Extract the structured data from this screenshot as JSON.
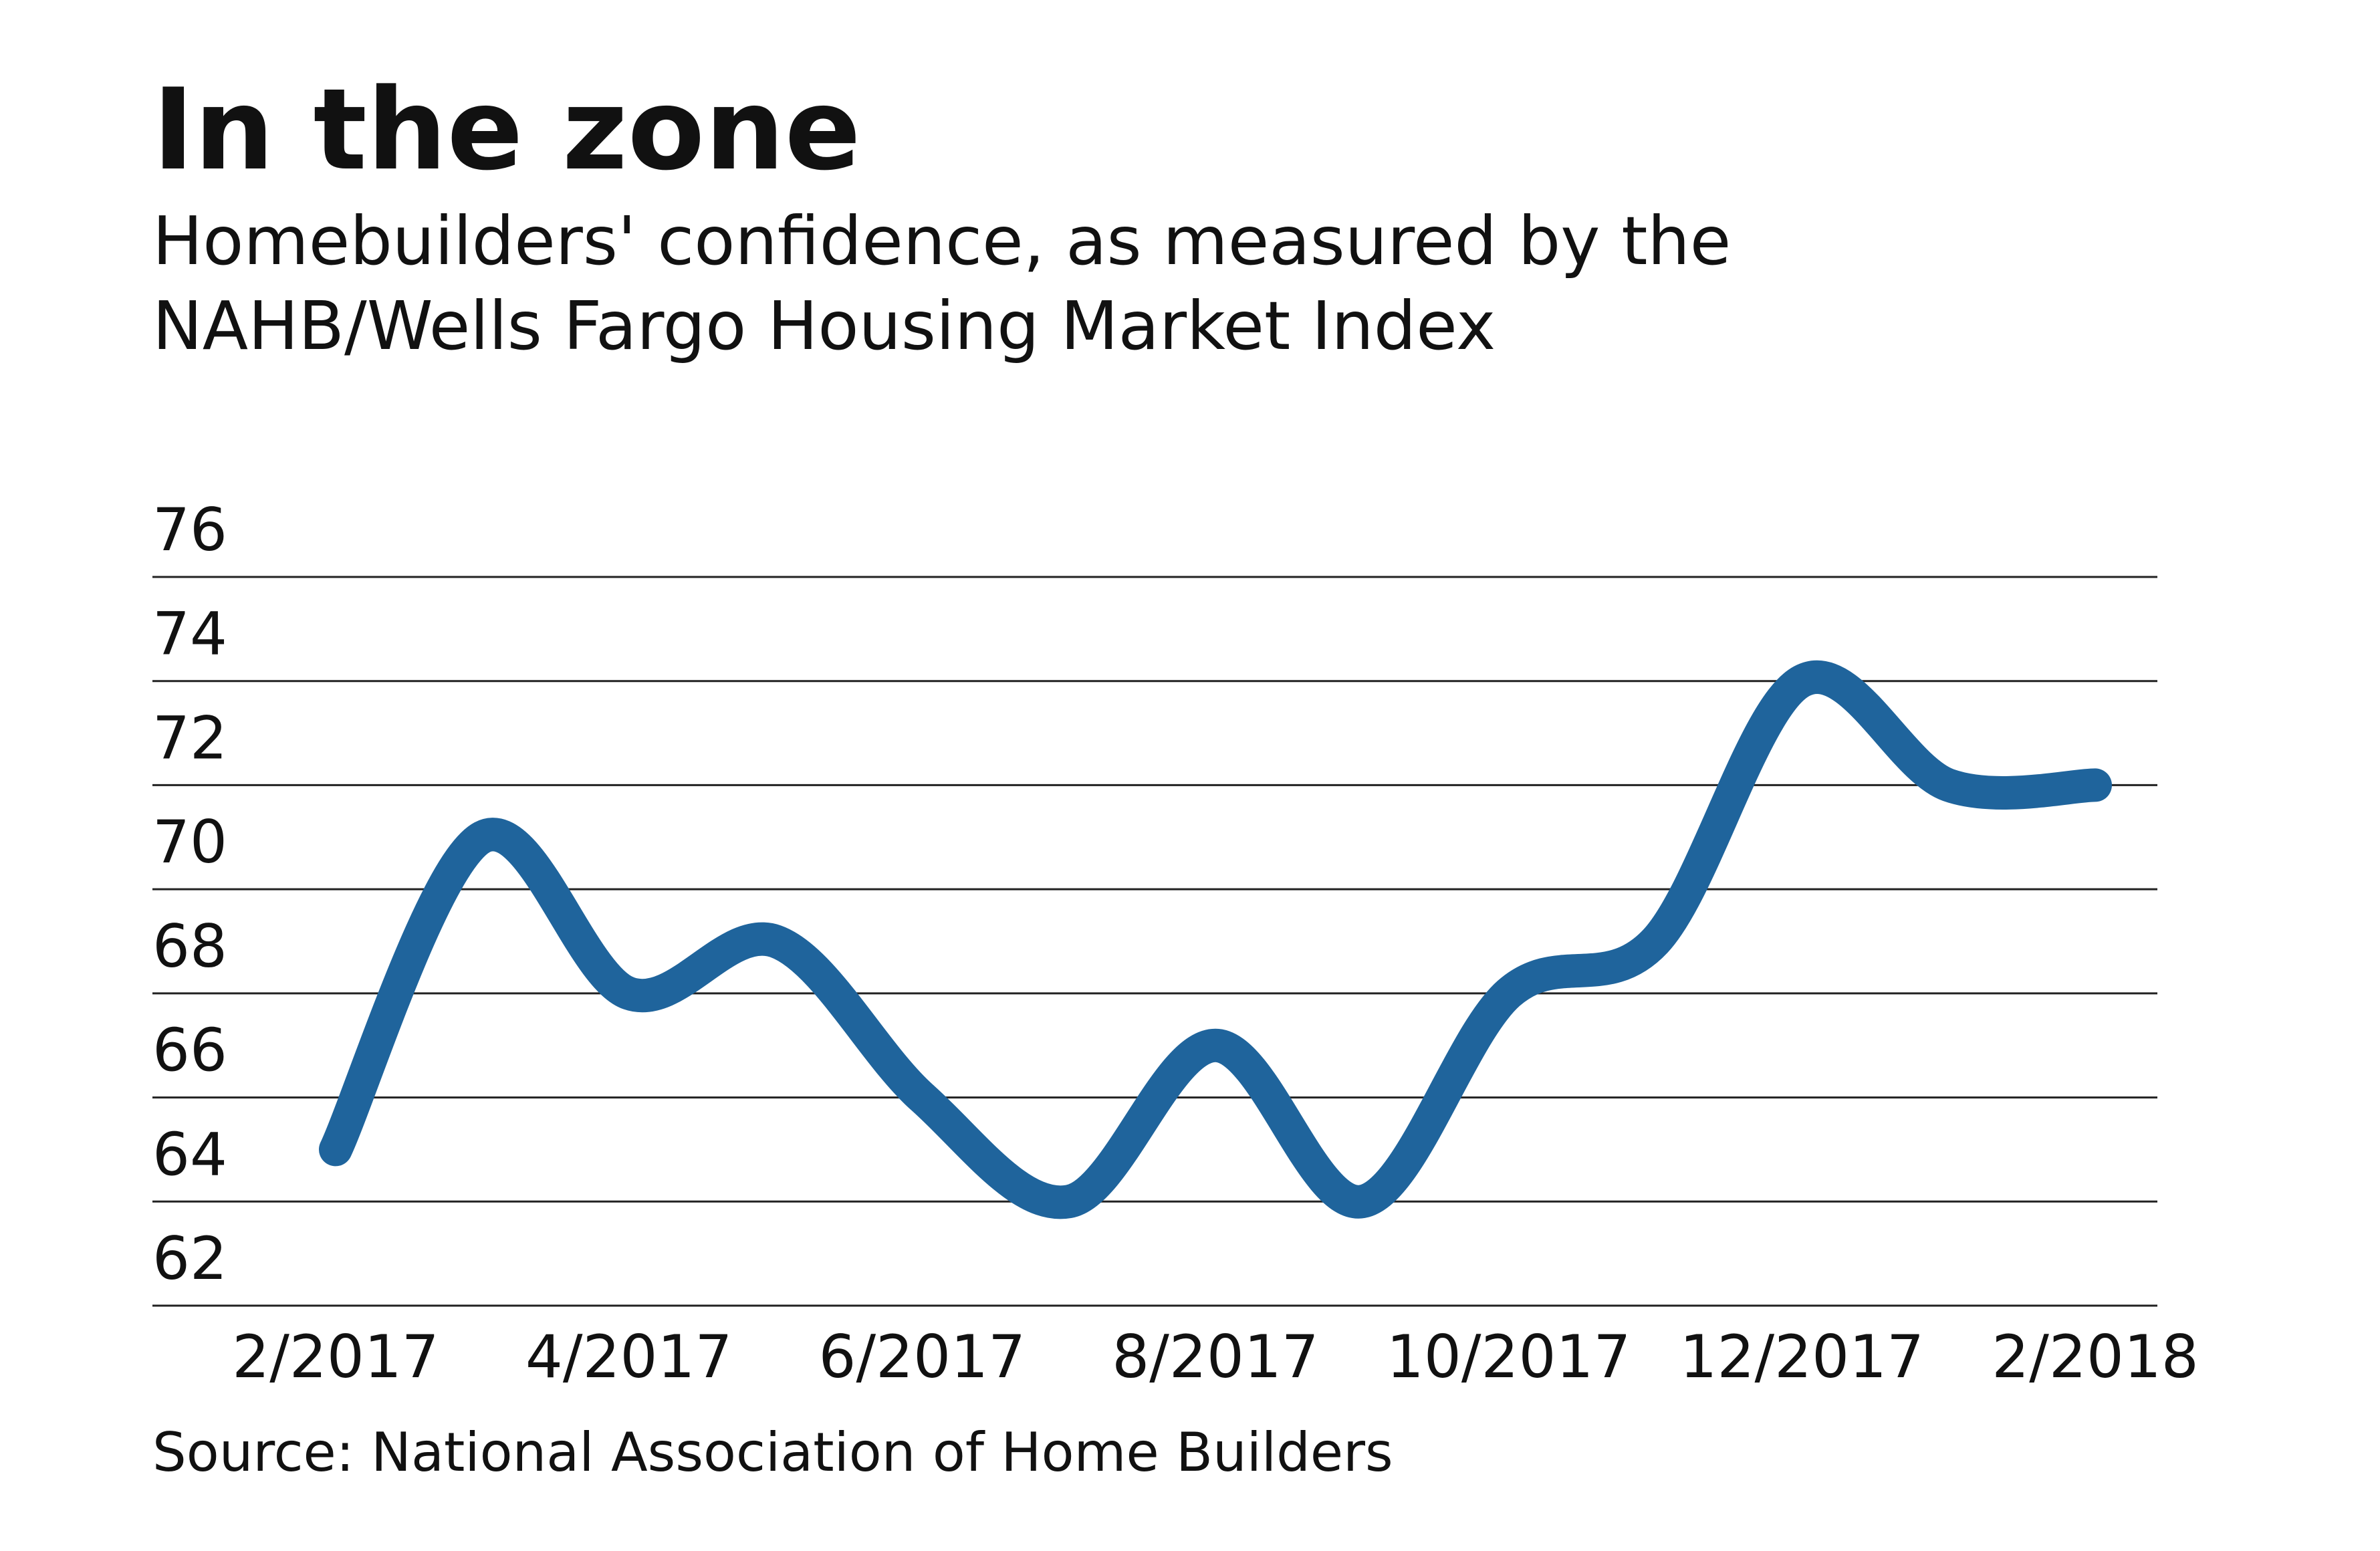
{
  "chart_data": {
    "type": "line",
    "title": "In the zone",
    "subtitle": [
      "Homebuilders' confidence, as measured by the",
      "NAHB/Wells Fargo Housing Market Index"
    ],
    "source": "Source: National Association of Home Builders",
    "categories": [
      "2/2017",
      null,
      "4/2017",
      null,
      "6/2017",
      null,
      "8/2017",
      null,
      "10/2017",
      null,
      "12/2017",
      null,
      "2/2018"
    ],
    "series": [
      {
        "name": "Housing Market Index",
        "color": "#1f649c",
        "values": [
          65,
          71,
          68,
          69,
          66,
          64,
          67,
          64,
          68,
          69,
          74,
          72,
          72
        ]
      }
    ],
    "ylim": [
      62,
      76
    ],
    "yticks": [
      62,
      64,
      66,
      68,
      70,
      72,
      74,
      76
    ],
    "grid": true
  }
}
